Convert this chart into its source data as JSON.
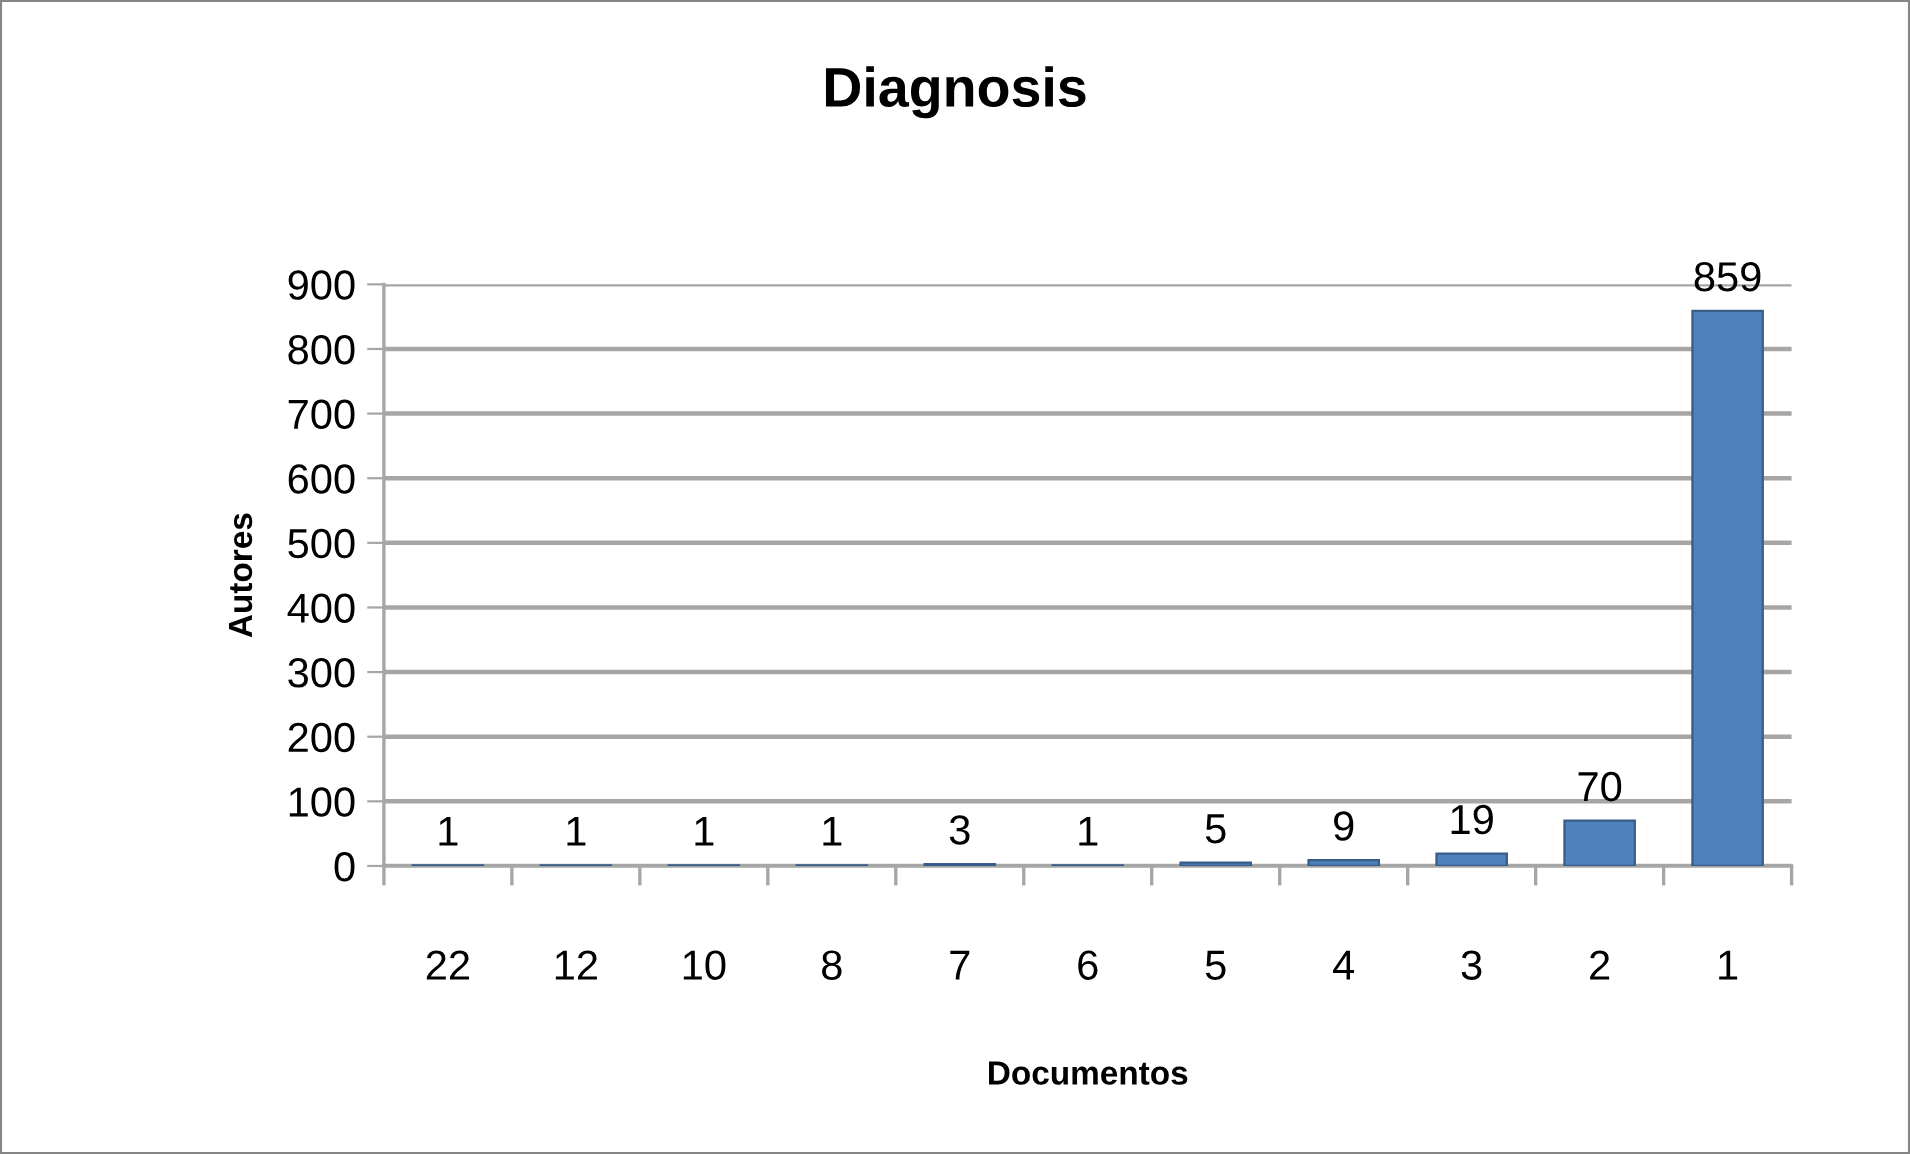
{
  "chart_data": {
    "type": "bar",
    "title": "Diagnosis",
    "xlabel": "Documentos",
    "ylabel": "Autores",
    "categories": [
      "22",
      "12",
      "10",
      "8",
      "7",
      "6",
      "5",
      "4",
      "3",
      "2",
      "1"
    ],
    "values": [
      1,
      1,
      1,
      1,
      3,
      1,
      5,
      9,
      19,
      70,
      859
    ],
    "color": "#4f81bd",
    "ylim": [
      0,
      900
    ],
    "yticks": [
      0,
      100,
      200,
      300,
      400,
      500,
      600,
      700,
      800,
      900
    ],
    "grid": "y",
    "data_labels": true
  }
}
